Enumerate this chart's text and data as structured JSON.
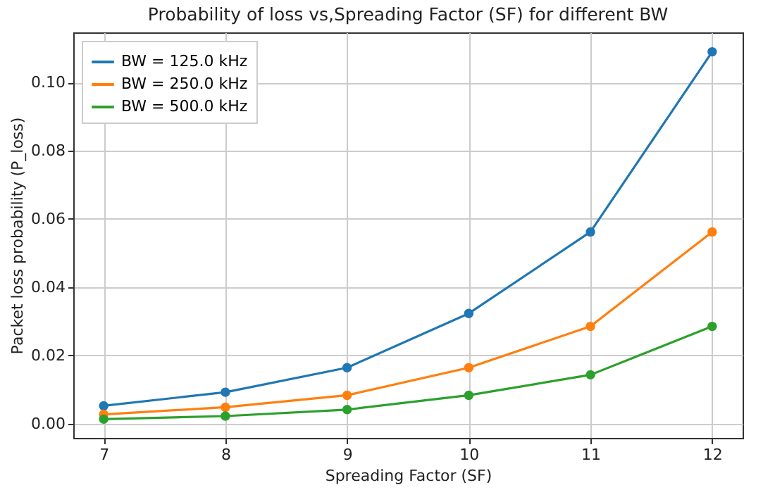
{
  "chart_data": {
    "type": "line",
    "title": "Probability of loss vs,Spreading Factor (SF) for different BW",
    "xlabel": "Spreading Factor (SF)",
    "ylabel": "Packet loss probability (P_loss)",
    "x": [
      7,
      8,
      9,
      10,
      11,
      12
    ],
    "series": [
      {
        "name": "BW = 125.0 kHz",
        "color": "#1f77b4",
        "values": [
          0.0052,
          0.0092,
          0.0164,
          0.0323,
          0.0562,
          0.109
        ]
      },
      {
        "name": "BW = 250.0 kHz",
        "color": "#ff7f0e",
        "values": [
          0.0027,
          0.0048,
          0.0083,
          0.0164,
          0.0285,
          0.0562
        ]
      },
      {
        "name": "BW = 500.0 kHz",
        "color": "#2ca02c",
        "values": [
          0.0013,
          0.0022,
          0.0041,
          0.0083,
          0.0143,
          0.0285
        ]
      }
    ],
    "xlim": [
      6.75,
      12.25
    ],
    "xticks": [
      7,
      8,
      9,
      10,
      11,
      12
    ],
    "ylim": [
      -0.0042,
      0.1147
    ],
    "yticks": [
      {
        "value": 0,
        "label": "0.00"
      },
      {
        "value": 0.02,
        "label": "0.02"
      },
      {
        "value": 0.04,
        "label": "0.04"
      },
      {
        "value": 0.06,
        "label": "0.06"
      },
      {
        "value": 0.08,
        "label": "0.08"
      },
      {
        "value": 0.1,
        "label": "0.10"
      }
    ],
    "grid": true,
    "legend": "top left",
    "marker": "circle",
    "line_style": "solid"
  }
}
